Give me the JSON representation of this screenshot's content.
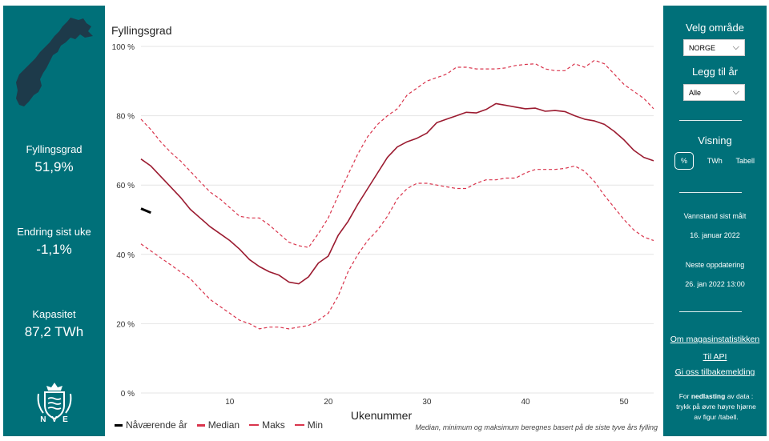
{
  "left_panel": {
    "kpis": [
      {
        "label": "Fyllingsgrad",
        "value": "51,9%"
      },
      {
        "label": "Endring sist uke",
        "value": "-1,1%"
      },
      {
        "label": "Kapasitet",
        "value": "87,2 TWh"
      }
    ],
    "logo_text": "NVE"
  },
  "chart": {
    "title": "Fyllingsgrad",
    "xlabel": "Ukenummer",
    "footnote": "Median, minimum og maksimum beregnes basert på de siste tyve års fylling",
    "legend": [
      "Nåværende år",
      "Median",
      "Maks",
      "Min"
    ]
  },
  "chart_data": {
    "type": "line",
    "x_range": [
      1,
      53
    ],
    "y_range": [
      0,
      100
    ],
    "y_ticks": [
      0,
      20,
      40,
      60,
      80,
      100
    ],
    "y_tick_labels": [
      "0 %",
      "20 %",
      "40 %",
      "60 %",
      "80 %",
      "100 %"
    ],
    "x_ticks": [
      10,
      20,
      30,
      40,
      50
    ],
    "colors": {
      "current": "#000000",
      "median": "#9b1b30",
      "maks": "#d9344c",
      "min": "#d9344c"
    },
    "series": [
      {
        "name": "Nåværende år",
        "x": [
          1,
          2
        ],
        "y": [
          53.2,
          52
        ]
      },
      {
        "name": "Median",
        "x": [
          1,
          2,
          3,
          4,
          5,
          6,
          7,
          8,
          9,
          10,
          11,
          12,
          13,
          14,
          15,
          16,
          17,
          18,
          19,
          20,
          21,
          22,
          23,
          24,
          25,
          26,
          27,
          28,
          29,
          30,
          31,
          32,
          33,
          34,
          35,
          36,
          37,
          38,
          39,
          40,
          41,
          42,
          43,
          44,
          45,
          46,
          47,
          48,
          49,
          50,
          51,
          52,
          53
        ],
        "y": [
          67.5,
          65.5,
          62.5,
          59.5,
          56.5,
          53,
          50.5,
          48,
          46,
          44,
          41.5,
          38.5,
          36.5,
          35,
          34,
          32,
          31.5,
          33.5,
          37.5,
          39.5,
          45.5,
          49.5,
          54.5,
          59,
          63.5,
          68,
          71,
          72.5,
          73.5,
          75,
          78,
          79,
          80,
          81,
          80.8,
          81.8,
          83.5,
          83,
          82.5,
          82,
          82.2,
          81.3,
          81.5,
          81.2,
          80,
          79,
          78.5,
          77.5,
          75.5,
          73,
          70,
          68,
          67
        ]
      },
      {
        "name": "Maks",
        "x": [
          1,
          2,
          3,
          4,
          5,
          6,
          7,
          8,
          9,
          10,
          11,
          12,
          13,
          14,
          15,
          16,
          17,
          18,
          19,
          20,
          21,
          22,
          23,
          24,
          25,
          26,
          27,
          28,
          29,
          30,
          31,
          32,
          33,
          34,
          35,
          36,
          37,
          38,
          39,
          40,
          41,
          42,
          43,
          44,
          45,
          46,
          47,
          48,
          49,
          50,
          51,
          52,
          53
        ],
        "y": [
          79,
          76,
          72.5,
          69.5,
          67,
          64,
          61,
          58,
          56,
          53.5,
          51,
          50.5,
          50.5,
          48.5,
          46,
          43.5,
          42.5,
          42,
          46,
          50.5,
          57,
          63,
          69,
          74,
          77.5,
          80,
          82,
          86,
          88,
          90,
          91,
          92,
          94,
          94,
          93.5,
          93.5,
          93.5,
          93.8,
          94.5,
          94.8,
          95,
          93.5,
          93,
          93,
          95,
          94,
          96,
          95,
          92,
          89,
          87,
          85,
          82
        ]
      },
      {
        "name": "Min",
        "x": [
          1,
          2,
          3,
          4,
          5,
          6,
          7,
          8,
          9,
          10,
          11,
          12,
          13,
          14,
          15,
          16,
          17,
          18,
          19,
          20,
          21,
          22,
          23,
          24,
          25,
          26,
          27,
          28,
          29,
          30,
          31,
          32,
          33,
          34,
          35,
          36,
          37,
          38,
          39,
          40,
          41,
          42,
          43,
          44,
          45,
          46,
          47,
          48,
          49,
          50,
          51,
          52,
          53
        ],
        "y": [
          43,
          41,
          39,
          37,
          35,
          33,
          30,
          27,
          25,
          23,
          21,
          20,
          18.5,
          19,
          19,
          18.5,
          19,
          19.5,
          21,
          23,
          28,
          35,
          40,
          44,
          47,
          51,
          56,
          59,
          60.5,
          60.5,
          60,
          59.5,
          59,
          59,
          60.5,
          61.5,
          61.5,
          62,
          62,
          63.5,
          64.5,
          64.5,
          64.5,
          64.8,
          65.5,
          64,
          61,
          57,
          53.5,
          50,
          47,
          45,
          44
        ]
      }
    ]
  },
  "right_panel": {
    "area_label": "Velg område",
    "area_value": "NORGE",
    "year_label": "Legg til år",
    "year_value": "Alle",
    "view_label": "Visning",
    "view_options": [
      "%",
      "TWh",
      "Tabell"
    ],
    "measured_label": "Vannstand sist målt",
    "measured_date": "16. januar 2022",
    "next_update_label": "Neste oppdatering",
    "next_update_date": "26. jan 2022 13:00",
    "links": [
      "Om magasinstatistikken",
      "Til API",
      "Gi oss tilbakemelding"
    ],
    "download_prefix": "For ",
    "download_bold": "nedlasting",
    "download_suffix": " av data : trykk på øvre høyre hjørne av figur /tabell."
  }
}
